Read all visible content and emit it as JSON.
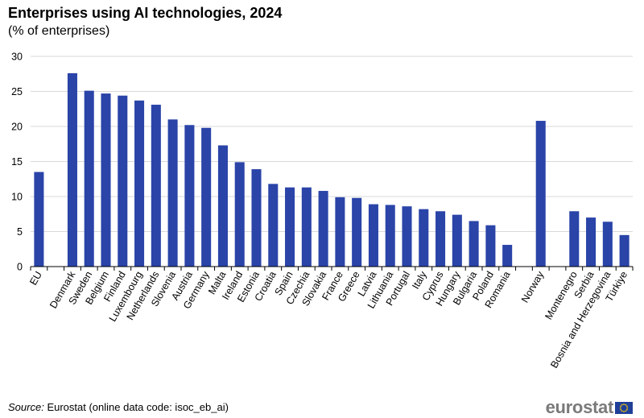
{
  "header": {
    "title": "Enterprises using AI technologies, 2024",
    "subtitle": "(% of enterprises)"
  },
  "chart_data": {
    "type": "bar",
    "title": "Enterprises using AI technologies, 2024",
    "subtitle": "(% of enterprises)",
    "xlabel": "",
    "ylabel": "",
    "ylim": [
      0,
      30
    ],
    "yticks": [
      0,
      5,
      10,
      15,
      20,
      25,
      30
    ],
    "grid": true,
    "color": "#2a44a8",
    "categories": [
      "EU",
      "",
      "Denmark",
      "Sweden",
      "Belgium",
      "Finland",
      "Luxembourg",
      "Netherlands",
      "Slovenia",
      "Austria",
      "Germany",
      "Malta",
      "Ireland",
      "Estonia",
      "Croatia",
      "Spain",
      "Czechia",
      "Slovakia",
      "France",
      "Greece",
      "Latvia",
      "Lithuania",
      "Portugal",
      "Italy",
      "Cyprus",
      "Hungary",
      "Bulgaria",
      "Poland",
      "Romania",
      "",
      "Norway",
      "",
      "Montenegro",
      "Serbia",
      "Bosnia and Herzegovina",
      "Türkiye"
    ],
    "values": [
      13.5,
      null,
      27.6,
      25.1,
      24.7,
      24.4,
      23.7,
      23.1,
      21.0,
      20.2,
      19.8,
      17.3,
      14.9,
      13.9,
      11.8,
      11.3,
      11.3,
      10.8,
      9.9,
      9.8,
      8.9,
      8.8,
      8.6,
      8.2,
      7.9,
      7.4,
      6.5,
      5.9,
      3.1,
      null,
      20.8,
      null,
      7.9,
      7.0,
      6.4,
      4.5
    ]
  },
  "footer": {
    "source_label": "Source:",
    "source_text": "Eurostat (online data code: isoc_eb_ai)",
    "logo_text": "eurostat",
    "logo_icon": "eu-flag-icon"
  }
}
